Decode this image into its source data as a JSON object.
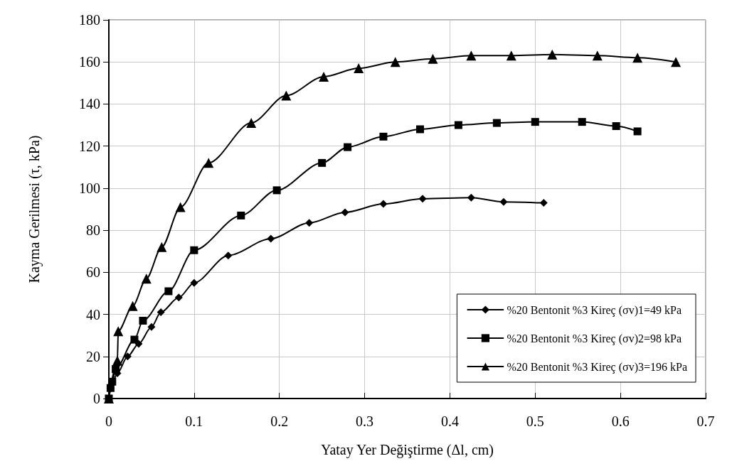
{
  "chart_data": {
    "type": "line",
    "xlabel": "Yatay Yer Değiştirme (Δl, cm)",
    "ylabel": "Kayma Gerilmesi (τ, kPa)",
    "xlim": [
      0,
      0.7
    ],
    "xticks": [
      0,
      0.1,
      0.2,
      0.3,
      0.4,
      0.5,
      0.6,
      0.7
    ],
    "ylim": [
      0,
      180
    ],
    "yticks": [
      0,
      20,
      40,
      60,
      80,
      100,
      120,
      140,
      160,
      180
    ],
    "grid": true,
    "legend": "bottom right",
    "line_style": "solid",
    "series": [
      {
        "name": "%20 Bentonit %3 Kireç (σv)1=49 kPa",
        "color": "#000000",
        "marker": "diamond",
        "x": [
          0,
          0.002,
          0.005,
          0.01,
          0.022,
          0.035,
          0.05,
          0.061,
          0.082,
          0.1,
          0.14,
          0.19,
          0.235,
          0.277,
          0.322,
          0.368,
          0.425,
          0.463,
          0.51
        ],
        "values": [
          0,
          5,
          null,
          12,
          20,
          26,
          34,
          41,
          48,
          55,
          68,
          76,
          83.5,
          88.5,
          92.5,
          95,
          95.5,
          93.5,
          93
        ]
      },
      {
        "name": "%20 Bentonit %3 Kireç (σv)2=98 kPa",
        "color": "#000000",
        "marker": "square",
        "x": [
          0,
          0.002,
          0.004,
          0.008,
          0.03,
          0.04,
          0.07,
          0.1,
          0.155,
          0.197,
          0.25,
          0.28,
          0.322,
          0.365,
          0.41,
          0.455,
          0.5,
          0.555,
          0.595,
          0.62
        ],
        "values": [
          0,
          5,
          8,
          14,
          28,
          37,
          51,
          70.5,
          87,
          99,
          112,
          119.5,
          124.5,
          128,
          130,
          131,
          131.5,
          131.5,
          129.5,
          127
        ]
      },
      {
        "name": "%20 Bentonit %3 Kireç (σv)3=196 kPa",
        "color": "#000000",
        "marker": "triangle",
        "x": [
          0,
          0.01,
          0.011,
          0.028,
          0.044,
          0.062,
          0.084,
          0.117,
          0.167,
          0.208,
          0.252,
          0.293,
          0.336,
          0.38,
          0.425,
          0.472,
          0.52,
          0.573,
          0.62,
          0.665
        ],
        "values": [
          0,
          18,
          32,
          44,
          57,
          72,
          91,
          112,
          131,
          144,
          153,
          157,
          160,
          161.5,
          163,
          163,
          163.5,
          163,
          162,
          160
        ]
      }
    ]
  }
}
